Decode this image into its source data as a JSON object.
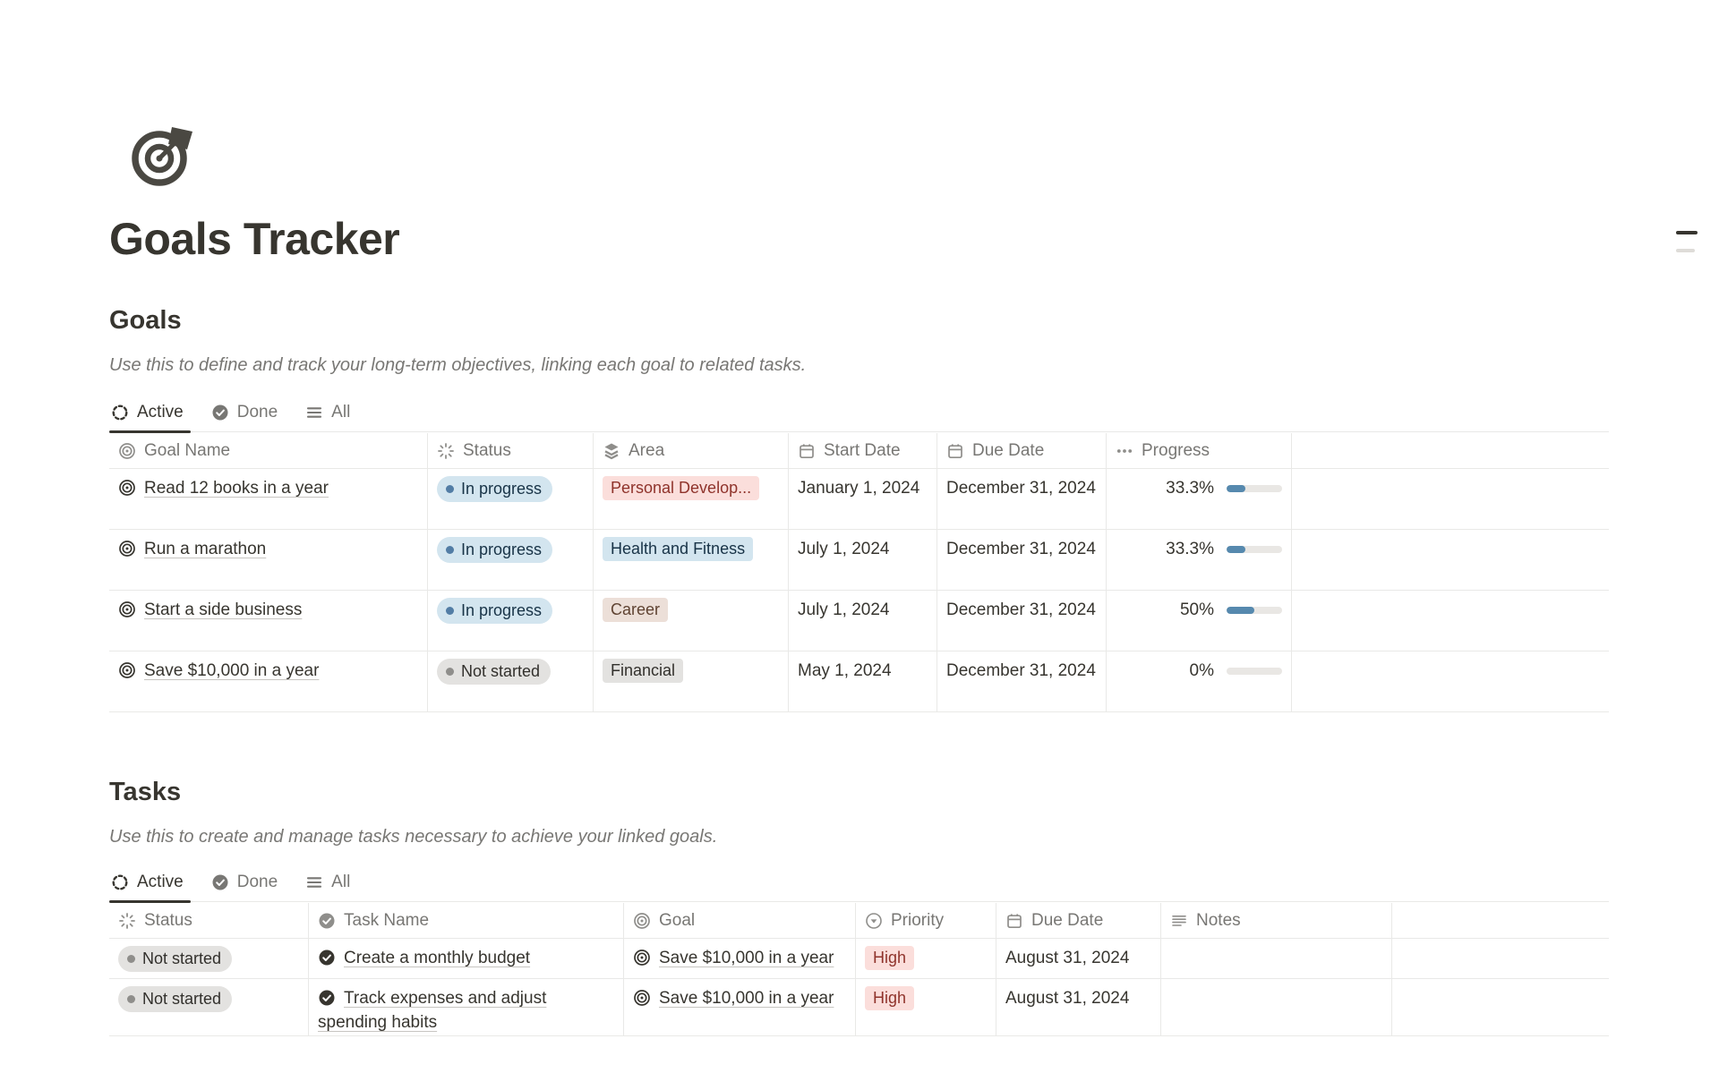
{
  "page": {
    "title": "Goals Tracker",
    "icon": "target-dart-icon"
  },
  "goals": {
    "heading": "Goals",
    "description": "Use this to define and track your long-term objectives, linking each goal to related tasks.",
    "tabs": [
      {
        "label": "Active",
        "icon": "dashed-circle-icon",
        "active": true
      },
      {
        "label": "Done",
        "icon": "check-circle-icon",
        "active": false
      },
      {
        "label": "All",
        "icon": "list-icon",
        "active": false
      }
    ],
    "columns": [
      {
        "label": "Goal Name",
        "icon": "target-icon"
      },
      {
        "label": "Status",
        "icon": "spinner-icon"
      },
      {
        "label": "Area",
        "icon": "layers-icon"
      },
      {
        "label": "Start Date",
        "icon": "calendar-icon"
      },
      {
        "label": "Due Date",
        "icon": "calendar-icon"
      },
      {
        "label": "Progress",
        "icon": "dots-icon"
      }
    ],
    "rows": [
      {
        "name": "Read 12 books in a year",
        "status": "In progress",
        "status_color": "blue",
        "area": "Personal Develop...",
        "area_color": "red",
        "start_date": "January 1, 2024",
        "due_date": "December 31, 2024",
        "progress": "33.3%",
        "progress_pct": 33.3
      },
      {
        "name": "Run a marathon",
        "status": "In progress",
        "status_color": "blue",
        "area": "Health and Fitness",
        "area_color": "blue",
        "start_date": "July 1, 2024",
        "due_date": "December 31, 2024",
        "progress": "33.3%",
        "progress_pct": 33.3
      },
      {
        "name": "Start a side business",
        "status": "In progress",
        "status_color": "blue",
        "area": "Career",
        "area_color": "brown",
        "start_date": "July 1, 2024",
        "due_date": "December 31, 2024",
        "progress": "50%",
        "progress_pct": 50
      },
      {
        "name": "Save $10,000 in a year",
        "status": "Not started",
        "status_color": "gray",
        "area": "Financial",
        "area_color": "gray",
        "start_date": "May 1, 2024",
        "due_date": "December 31, 2024",
        "progress": "0%",
        "progress_pct": 0
      }
    ]
  },
  "tasks": {
    "heading": "Tasks",
    "description": "Use this to create and manage tasks necessary to achieve your linked goals.",
    "tabs": [
      {
        "label": "Active",
        "icon": "dashed-circle-icon",
        "active": true
      },
      {
        "label": "Done",
        "icon": "check-circle-icon",
        "active": false
      },
      {
        "label": "All",
        "icon": "list-icon",
        "active": false
      }
    ],
    "columns": [
      {
        "label": "Status",
        "icon": "spinner-icon"
      },
      {
        "label": "Task Name",
        "icon": "check-circle-icon"
      },
      {
        "label": "Goal",
        "icon": "target-icon"
      },
      {
        "label": "Priority",
        "icon": "select-circle-icon"
      },
      {
        "label": "Due Date",
        "icon": "calendar-icon"
      },
      {
        "label": "Notes",
        "icon": "text-lines-icon"
      }
    ],
    "rows": [
      {
        "status": "Not started",
        "status_color": "gray",
        "name": "Create a monthly budget",
        "goal": "Save $10,000 in a year",
        "priority": "High",
        "priority_color": "red",
        "due_date": "August 31, 2024",
        "notes": ""
      },
      {
        "status": "Not started",
        "status_color": "gray",
        "name": "Track expenses and adjust spending habits",
        "goal": "Save $10,000 in a year",
        "priority": "High",
        "priority_color": "red",
        "due_date": "August 31, 2024",
        "notes": ""
      }
    ]
  },
  "colors": {
    "text_primary": "#37352f",
    "text_secondary": "#787774",
    "table_border": "#e9e9e7",
    "tag_blue_bg": "#d3e5ef",
    "tag_blue_text": "#183347",
    "tag_red_bg": "#fbdedb",
    "tag_red_text": "#8f332b",
    "tag_brown_bg": "#ecdfd8",
    "tag_brown_text": "#5f4332",
    "tag_gray_bg": "#e3e2e0",
    "tag_gray_text": "#32302c",
    "status_dot_blue": "#527da5",
    "status_dot_gray": "#8f8e8b",
    "progress_fill": "#5689ae",
    "progress_track": "#e9e7e4"
  }
}
